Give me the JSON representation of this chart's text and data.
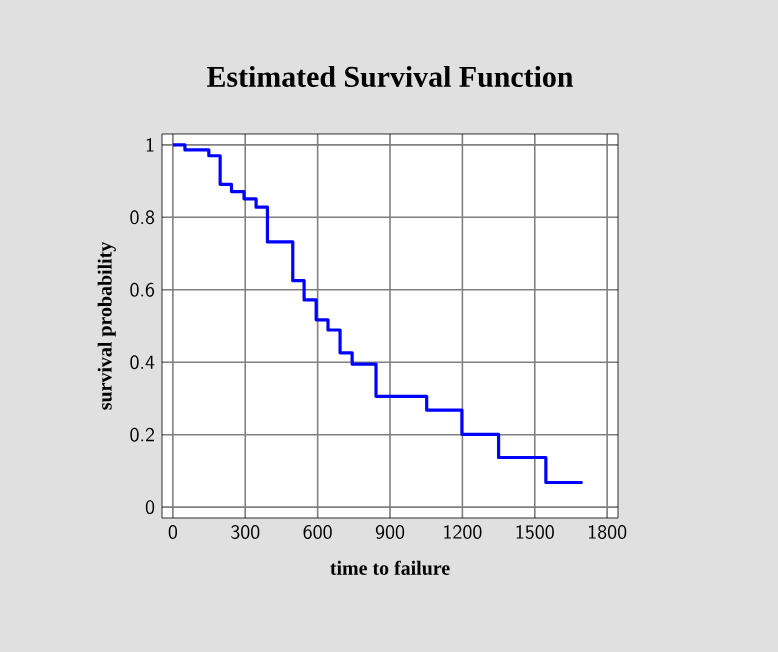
{
  "chart_data": {
    "type": "step",
    "title": "Estimated Survival Function",
    "xlabel": "time to failure",
    "ylabel": "survival probability",
    "x": [
      0,
      50,
      149,
      196,
      243,
      295,
      345,
      392,
      497,
      544,
      594,
      643,
      693,
      743,
      842,
      1052,
      1198,
      1350,
      1546,
      1698
    ],
    "values": [
      1,
      0.986,
      0.97,
      0.891,
      0.871,
      0.851,
      0.828,
      0.732,
      0.625,
      0.572,
      0.517,
      0.489,
      0.426,
      0.395,
      0.306,
      0.268,
      0.201,
      0.137,
      0.068,
      0.068
    ],
    "color": "#0000ff",
    "xlim": [
      -45,
      1845
    ],
    "ylim": [
      -0.03,
      1.03
    ],
    "xticks": [
      0,
      300,
      600,
      900,
      1200,
      1500,
      1800
    ],
    "yticks": [
      0,
      0.2,
      0.4,
      0.6,
      0.8,
      1
    ],
    "grid": true
  }
}
